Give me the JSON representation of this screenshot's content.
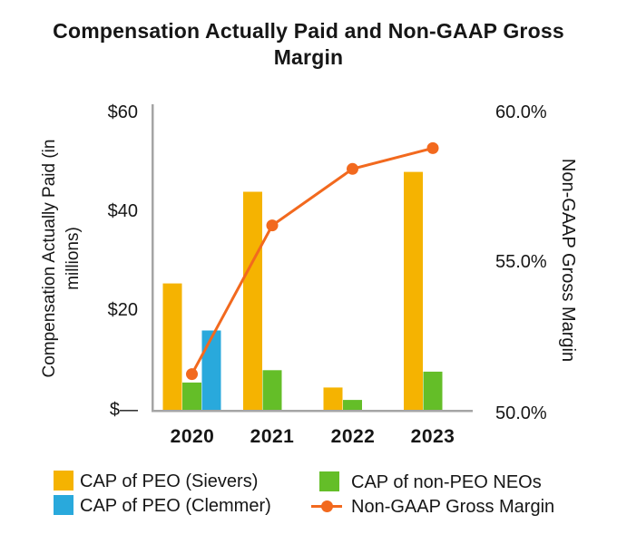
{
  "title": "Compensation Actually Paid and Non-GAAP Gross Margin",
  "colors": {
    "sievers_bar": "#F5B301",
    "clemmer_bar": "#29A9DC",
    "neos_bar": "#64BE28",
    "margin_line": "#F2691E",
    "axis_line": "#A5A5A5",
    "text": "#161616"
  },
  "chart_data": {
    "type": "bar",
    "title": "Compensation Actually Paid and Non-GAAP Gross Margin",
    "categories": [
      "2020",
      "2021",
      "2022",
      "2023"
    ],
    "series": [
      {
        "name": "CAP of PEO (Sievers)",
        "type": "bar",
        "axis": "left",
        "color": "sievers_bar",
        "values": [
          25.5,
          44,
          4.5,
          48
        ]
      },
      {
        "name": "CAP of non-PEO NEOs",
        "type": "bar",
        "axis": "left",
        "color": "neos_bar",
        "values": [
          5.5,
          8,
          2,
          7.7
        ]
      },
      {
        "name": "CAP of PEO (Clemmer)",
        "type": "bar",
        "axis": "left",
        "color": "clemmer_bar",
        "values": [
          16,
          0,
          0,
          0
        ]
      },
      {
        "name": "Non-GAAP Gross Margin",
        "type": "line",
        "axis": "right",
        "color": "margin_line",
        "values": [
          51.2,
          56.2,
          58.1,
          58.8
        ]
      }
    ],
    "left_axis": {
      "label": "Compensation Actually Paid (in millions)",
      "min": 0,
      "max": 60,
      "ticks": [
        {
          "value": 0,
          "label": "$—"
        },
        {
          "value": 20,
          "label": "$20"
        },
        {
          "value": 40,
          "label": "$40"
        },
        {
          "value": 60,
          "label": "$60"
        }
      ]
    },
    "right_axis": {
      "label": "Non-GAAP Gross Margin",
      "min": 50,
      "max": 60,
      "ticks": [
        {
          "value": 50,
          "label": "50.0%"
        },
        {
          "value": 55,
          "label": "55.0%"
        },
        {
          "value": 60,
          "label": "60.0%"
        }
      ]
    },
    "grid": false,
    "legend_position": "bottom"
  },
  "legend": {
    "items": [
      {
        "label": "CAP of PEO (Sievers)",
        "swatch": "square",
        "color": "sievers_bar"
      },
      {
        "label": "CAP of PEO (Clemmer)",
        "swatch": "square",
        "color": "clemmer_bar"
      },
      {
        "label": "CAP of non-PEO NEOs",
        "swatch": "square",
        "color": "neos_bar"
      },
      {
        "label": "Non-GAAP Gross Margin",
        "swatch": "line-dot",
        "color": "margin_line"
      }
    ]
  }
}
